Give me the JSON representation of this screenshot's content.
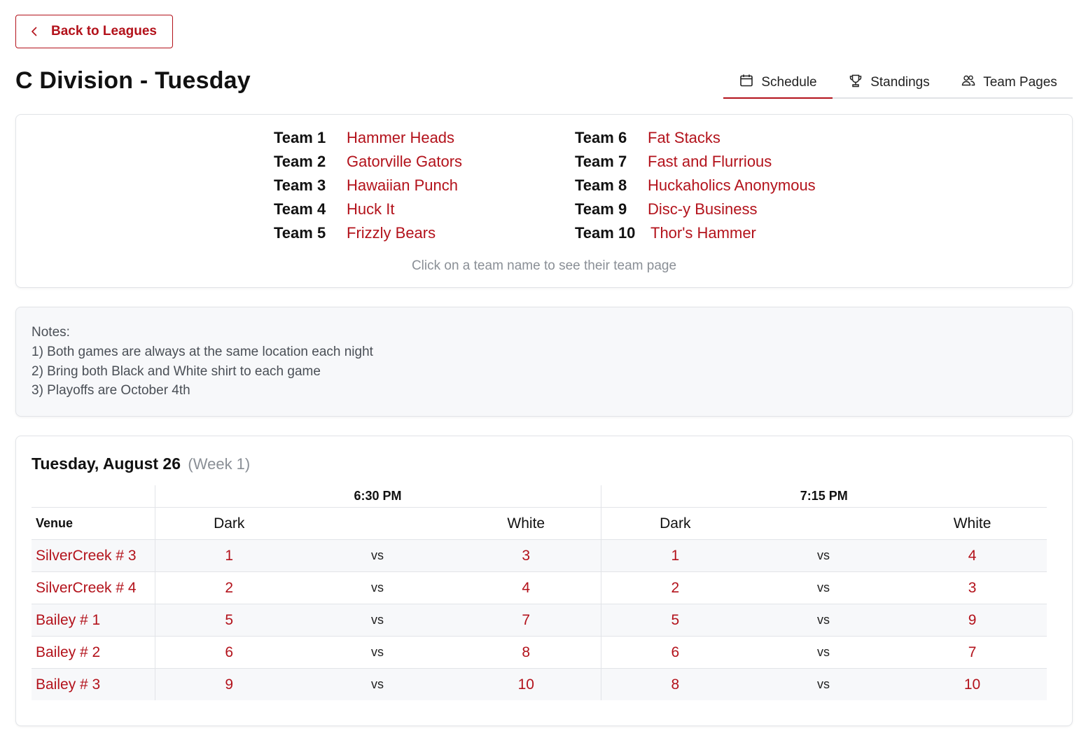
{
  "back_button": {
    "label": "Back to Leagues",
    "icon": "chevron-left-icon"
  },
  "page_title": "C Division - Tuesday",
  "tabs": [
    {
      "label": "Schedule",
      "icon": "calendar-icon",
      "active": true
    },
    {
      "label": "Standings",
      "icon": "trophy-icon",
      "active": false
    },
    {
      "label": "Team Pages",
      "icon": "users-icon",
      "active": false
    }
  ],
  "teams": [
    {
      "num": "Team 1",
      "name": "Hammer Heads"
    },
    {
      "num": "Team 2",
      "name": "Gatorville Gators"
    },
    {
      "num": "Team 3",
      "name": "Hawaiian Punch"
    },
    {
      "num": "Team 4",
      "name": "Huck It"
    },
    {
      "num": "Team 5",
      "name": "Frizzly Bears"
    },
    {
      "num": "Team 6",
      "name": "Fat Stacks"
    },
    {
      "num": "Team 7",
      "name": "Fast and Flurrious"
    },
    {
      "num": "Team 8",
      "name": "Huckaholics Anonymous"
    },
    {
      "num": "Team 9",
      "name": "Disc-y Business"
    },
    {
      "num": "Team 10",
      "name": "Thor's Hammer"
    }
  ],
  "teams_hint": "Click on a team name to see their team page",
  "notes": [
    "Notes:",
    "1) Both games are always at the same location each night",
    "2) Bring both Black and White shirt to each game",
    "3) Playoffs are October 4th"
  ],
  "schedule": {
    "date": "Tuesday, August 26",
    "week": "(Week 1)",
    "times": [
      "6:30 PM",
      "7:15 PM"
    ],
    "headers": {
      "venue": "Venue",
      "dark": "Dark",
      "white": "White",
      "vs": "vs"
    },
    "rows": [
      {
        "venue": "SilverCreek # 3",
        "g1_dark": "1",
        "g1_white": "3",
        "g2_dark": "1",
        "g2_white": "4"
      },
      {
        "venue": "SilverCreek # 4",
        "g1_dark": "2",
        "g1_white": "4",
        "g2_dark": "2",
        "g2_white": "3"
      },
      {
        "venue": "Bailey # 1",
        "g1_dark": "5",
        "g1_white": "7",
        "g2_dark": "5",
        "g2_white": "9"
      },
      {
        "venue": "Bailey # 2",
        "g1_dark": "6",
        "g1_white": "8",
        "g2_dark": "6",
        "g2_white": "7"
      },
      {
        "venue": "Bailey # 3",
        "g1_dark": "9",
        "g1_white": "10",
        "g2_dark": "8",
        "g2_white": "10"
      }
    ]
  },
  "colors": {
    "accent": "#b3121b",
    "muted": "#8a8f96",
    "border": "#e2e4e8",
    "stripe": "#f7f8fa"
  }
}
